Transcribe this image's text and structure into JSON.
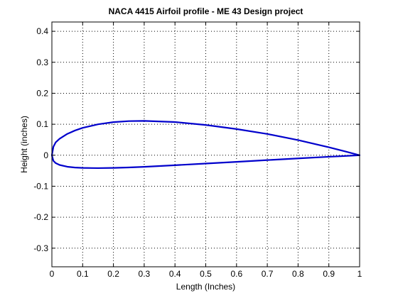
{
  "chart_data": {
    "type": "line",
    "title": "NACA 4415 Airfoil profile - ME 43 Design project",
    "xlabel": "Length (Inches)",
    "ylabel": "Height (inches)",
    "xlim": [
      0,
      1
    ],
    "ylim": [
      -0.36,
      0.43
    ],
    "grid": true,
    "legend": "none",
    "xticks": [
      0,
      0.1,
      0.2,
      0.3,
      0.4,
      0.5,
      0.6,
      0.7,
      0.8,
      0.9,
      1
    ],
    "xtick_labels": [
      "0",
      "0.1",
      "0.2",
      "0.3",
      "0.4",
      "0.5",
      "0.6",
      "0.7",
      "0.8",
      "0.9",
      "1"
    ],
    "yticks": [
      -0.3,
      -0.2,
      -0.1,
      0,
      0.1,
      0.2,
      0.3,
      0.4
    ],
    "ytick_labels": [
      "-0.3",
      "-0.2",
      "-0.1",
      "0",
      "0.1",
      "0.2",
      "0.3",
      "0.4"
    ],
    "colors": {
      "series": "#0000cc",
      "grid": "#000000",
      "axes": "#000000"
    },
    "series": [
      {
        "x": [
          1.0,
          0.95,
          0.9,
          0.8,
          0.7,
          0.6,
          0.5,
          0.4,
          0.3,
          0.25,
          0.2,
          0.15,
          0.1,
          0.075,
          0.05,
          0.025,
          0.0125,
          0.005,
          0.0,
          0.005,
          0.0125,
          0.025,
          0.05,
          0.075,
          0.1,
          0.15,
          0.2,
          0.25,
          0.3,
          0.4,
          0.5,
          0.6,
          0.7,
          0.8,
          0.9,
          0.95,
          1.0
        ],
        "y": [
          0.0,
          0.013,
          0.0256,
          0.0489,
          0.0687,
          0.0845,
          0.0977,
          0.1072,
          0.1109,
          0.1101,
          0.1068,
          0.0998,
          0.0883,
          0.0798,
          0.0689,
          0.0531,
          0.0418,
          0.0276,
          0.0,
          -0.0182,
          -0.0255,
          -0.0314,
          -0.0371,
          -0.0397,
          -0.0409,
          -0.0416,
          -0.0409,
          -0.0394,
          -0.0374,
          -0.0323,
          -0.0268,
          -0.0214,
          -0.0157,
          -0.0103,
          -0.0049,
          -0.0025,
          0.0
        ]
      }
    ]
  }
}
